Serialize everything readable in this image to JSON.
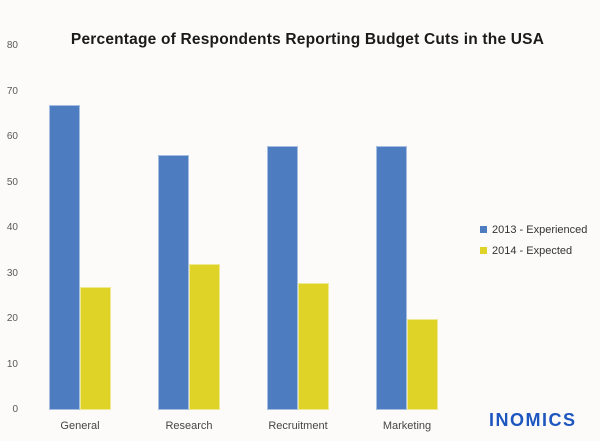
{
  "chart_data": {
    "type": "bar",
    "title": "Percentage of Respondents Reporting Budget Cuts in the USA",
    "categories": [
      "General",
      "Research",
      "Recruitment",
      "Marketing"
    ],
    "series": [
      {
        "name": "2013 - Experienced",
        "color": "#4d7cc1",
        "values": [
          67,
          56,
          58,
          58
        ]
      },
      {
        "name": "2014 - Expected",
        "color": "#e0d328",
        "values": [
          27,
          32,
          28,
          20
        ]
      }
    ],
    "xlabel": "",
    "ylabel": "",
    "ylim": [
      0,
      80
    ],
    "yticks": [
      0,
      10,
      20,
      30,
      40,
      50,
      60,
      70,
      80
    ],
    "grid": false,
    "axis_lines": false,
    "legend_position": "right-middle"
  },
  "branding": {
    "logo_text": "INOMICS",
    "logo_color": "#1e56c0"
  },
  "colors": {
    "background": "#fcfbfa",
    "series_2013": "#4d7cc1",
    "series_2014": "#e0d328"
  }
}
